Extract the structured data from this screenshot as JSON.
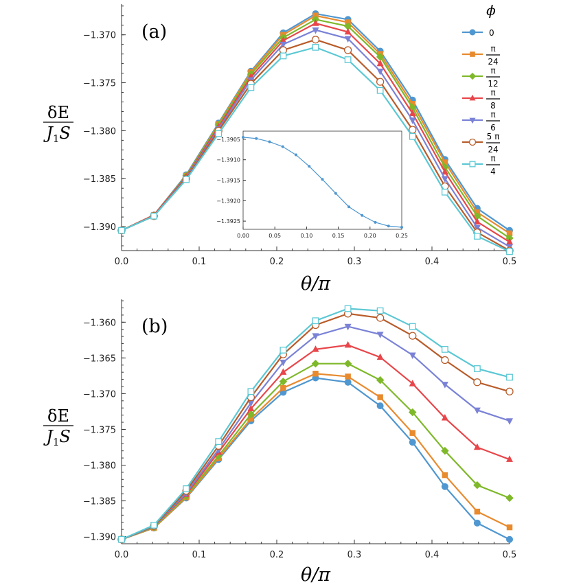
{
  "chart_data": [
    {
      "panel_label": "(a)",
      "type": "line",
      "x": [
        0,
        0.0417,
        0.0833,
        0.125,
        0.1667,
        0.2083,
        0.25,
        0.2917,
        0.3333,
        0.375,
        0.4167,
        0.4583,
        0.5
      ],
      "xlim": [
        0,
        0.5
      ],
      "ylim": [
        -1.3925,
        -1.3668
      ],
      "xticks": [
        "0.0",
        "0.1",
        "0.2",
        "0.3",
        "0.4",
        "0.5"
      ],
      "xtick_values": [
        0,
        0.1,
        0.2,
        0.3,
        0.4,
        0.5
      ],
      "yticks": [
        "-1.390",
        "-1.385",
        "-1.380",
        "-1.375",
        "-1.370"
      ],
      "ytick_values": [
        -1.39,
        -1.385,
        -1.38,
        -1.375,
        -1.37
      ],
      "xlabel": "θ/π",
      "ylabel": {
        "num": "δE",
        "den_main": "J",
        "den_sub": "1",
        "den_tail": "S"
      },
      "legend": {
        "title": "ϕ",
        "position": "right"
      },
      "series": [
        {
          "name": "0",
          "color": "#4f97d0",
          "marker": "circle",
          "values": [
            -1.3904,
            -1.3888,
            -1.3846,
            -1.3792,
            -1.3738,
            -1.3698,
            -1.3678,
            -1.3684,
            -1.3717,
            -1.3768,
            -1.383,
            -1.3881,
            -1.3904
          ]
        },
        {
          "name": "π/24",
          "color": "#e88a2e",
          "marker": "square",
          "values": [
            -1.3904,
            -1.3888,
            -1.3847,
            -1.3793,
            -1.3739,
            -1.37,
            -1.368,
            -1.3687,
            -1.372,
            -1.3772,
            -1.3833,
            -1.3885,
            -1.3907
          ]
        },
        {
          "name": "π/12",
          "color": "#7fb82a",
          "marker": "diamond",
          "values": [
            -1.3904,
            -1.3888,
            -1.3847,
            -1.3794,
            -1.3741,
            -1.3703,
            -1.3684,
            -1.3691,
            -1.3723,
            -1.3776,
            -1.3838,
            -1.3889,
            -1.3912
          ]
        },
        {
          "name": "π/8",
          "color": "#e8464a",
          "marker": "triangle-up",
          "values": [
            -1.3904,
            -1.3888,
            -1.3848,
            -1.3796,
            -1.3744,
            -1.3706,
            -1.3688,
            -1.3697,
            -1.373,
            -1.3782,
            -1.3843,
            -1.3895,
            -1.3916
          ]
        },
        {
          "name": "π/6",
          "color": "#7a82d6",
          "marker": "triangle-down",
          "values": [
            -1.3904,
            -1.3889,
            -1.3849,
            -1.3798,
            -1.3747,
            -1.371,
            -1.3695,
            -1.3704,
            -1.3738,
            -1.3789,
            -1.385,
            -1.3901,
            -1.3921
          ]
        },
        {
          "name": "5 π/24",
          "color": "#b85c2a",
          "marker": "circle-open",
          "values": [
            -1.3904,
            -1.3889,
            -1.385,
            -1.38,
            -1.3751,
            -1.3716,
            -1.3705,
            -1.3716,
            -1.3749,
            -1.3799,
            -1.3858,
            -1.3906,
            -1.3925
          ]
        },
        {
          "name": "π/4",
          "color": "#5bc8d4",
          "marker": "square-open",
          "values": [
            -1.3904,
            -1.3889,
            -1.3851,
            -1.3803,
            -1.3755,
            -1.3722,
            -1.3713,
            -1.3726,
            -1.3758,
            -1.3806,
            -1.3864,
            -1.391,
            -1.3926
          ]
        }
      ],
      "inset": {
        "type": "line",
        "color": "#4f97d0",
        "x": [
          0,
          0.02083,
          0.04167,
          0.0625,
          0.08333,
          0.10417,
          0.125,
          0.14583,
          0.16667,
          0.1875,
          0.20833,
          0.22917,
          0.25
        ],
        "values": [
          -1.39045,
          -1.39048,
          -1.39056,
          -1.39068,
          -1.39088,
          -1.39116,
          -1.39148,
          -1.39182,
          -1.39215,
          -1.39236,
          -1.39253,
          -1.39262,
          -1.39265
        ],
        "xlim": [
          0,
          0.25
        ],
        "ylim": [
          -1.3927,
          -1.3903
        ],
        "xticks": [
          "0.00",
          "0.05",
          "0.10",
          "0.15",
          "0.20",
          "0.25"
        ],
        "xtick_values": [
          0,
          0.05,
          0.1,
          0.15,
          0.2,
          0.25
        ],
        "yticks": [
          "-1.3905",
          "-1.3910",
          "-1.3915",
          "-1.3920",
          "-1.3925"
        ],
        "ytick_values": [
          -1.3905,
          -1.391,
          -1.3915,
          -1.392,
          -1.3925
        ]
      }
    },
    {
      "panel_label": "(b)",
      "type": "line",
      "x": [
        0,
        0.0417,
        0.0833,
        0.125,
        0.1667,
        0.2083,
        0.25,
        0.2917,
        0.3333,
        0.375,
        0.4167,
        0.4583,
        0.5
      ],
      "xlim": [
        0,
        0.5
      ],
      "ylim": [
        -1.391,
        -1.3568
      ],
      "xticks": [
        "0.0",
        "0.1",
        "0.2",
        "0.3",
        "0.4",
        "0.5"
      ],
      "xtick_values": [
        0,
        0.1,
        0.2,
        0.3,
        0.4,
        0.5
      ],
      "yticks": [
        "-1.390",
        "-1.385",
        "-1.380",
        "-1.375",
        "-1.370",
        "-1.365",
        "-1.360"
      ],
      "ytick_values": [
        -1.39,
        -1.385,
        -1.38,
        -1.375,
        -1.37,
        -1.365,
        -1.36
      ],
      "xlabel": "θ/π",
      "ylabel": {
        "num": "δE",
        "den_main": "J",
        "den_sub": "1",
        "den_tail": "S"
      },
      "series": [
        {
          "name": "0",
          "color": "#4f97d0",
          "marker": "circle",
          "values": [
            -1.3904,
            -1.3888,
            -1.3846,
            -1.3792,
            -1.3738,
            -1.3698,
            -1.3678,
            -1.3684,
            -1.3717,
            -1.3768,
            -1.383,
            -1.3881,
            -1.3904
          ]
        },
        {
          "name": "π/24",
          "color": "#e88a2e",
          "marker": "square",
          "values": [
            -1.3904,
            -1.3888,
            -1.3845,
            -1.379,
            -1.3735,
            -1.3692,
            -1.3672,
            -1.3676,
            -1.3705,
            -1.3755,
            -1.3814,
            -1.3865,
            -1.3887
          ]
        },
        {
          "name": "π/12",
          "color": "#7fb82a",
          "marker": "diamond",
          "values": [
            -1.3904,
            -1.3887,
            -1.3843,
            -1.3787,
            -1.3729,
            -1.3683,
            -1.3658,
            -1.3658,
            -1.3681,
            -1.3726,
            -1.378,
            -1.3828,
            -1.3846
          ]
        },
        {
          "name": "π/8",
          "color": "#e8464a",
          "marker": "triangle-up",
          "values": [
            -1.3904,
            -1.3886,
            -1.3841,
            -1.3782,
            -1.3721,
            -1.367,
            -1.3638,
            -1.3632,
            -1.3649,
            -1.3686,
            -1.3734,
            -1.3775,
            -1.3792
          ]
        },
        {
          "name": "π/6",
          "color": "#7a82d6",
          "marker": "triangle-down",
          "values": [
            -1.3904,
            -1.3886,
            -1.3839,
            -1.3778,
            -1.3713,
            -1.3656,
            -1.3619,
            -1.3606,
            -1.3617,
            -1.3646,
            -1.3687,
            -1.3723,
            -1.3738
          ]
        },
        {
          "name": "5 π/24",
          "color": "#b85c2a",
          "marker": "circle-open",
          "values": [
            -1.3904,
            -1.3885,
            -1.3836,
            -1.3773,
            -1.3705,
            -1.3645,
            -1.3604,
            -1.3588,
            -1.3594,
            -1.3619,
            -1.3653,
            -1.3684,
            -1.3697
          ]
        },
        {
          "name": "π/4",
          "color": "#5bc8d4",
          "marker": "square-open",
          "values": [
            -1.3904,
            -1.3884,
            -1.3833,
            -1.3767,
            -1.3697,
            -1.3639,
            -1.3598,
            -1.3581,
            -1.3584,
            -1.3606,
            -1.3638,
            -1.3665,
            -1.3677
          ]
        }
      ]
    }
  ]
}
